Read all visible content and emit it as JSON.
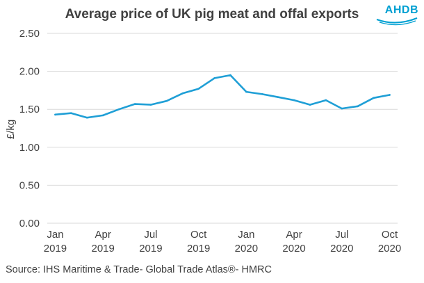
{
  "header": {
    "logo_text": "AHDB"
  },
  "footer": {
    "source": "Source: IHS Maritime & Trade- Global Trade Atlas®- HMRC"
  },
  "colors": {
    "line": "#1f9fd6",
    "logo": "#00a0d2",
    "grid": "#d9d9d9",
    "text": "#404040"
  },
  "chart_data": {
    "type": "line",
    "title": "Average price of UK pig meat and offal exports",
    "xlabel": "",
    "ylabel": "£/kg",
    "ylim": [
      0,
      2.5
    ],
    "yticks": [
      "0.00",
      "0.50",
      "1.00",
      "1.50",
      "2.00",
      "2.50"
    ],
    "grid": true,
    "x_tick_labels": [
      {
        "index": 0,
        "line1": "Jan",
        "line2": "2019"
      },
      {
        "index": 3,
        "line1": "Apr",
        "line2": "2019"
      },
      {
        "index": 6,
        "line1": "Jul",
        "line2": "2019"
      },
      {
        "index": 9,
        "line1": "Oct",
        "line2": "2019"
      },
      {
        "index": 12,
        "line1": "Jan",
        "line2": "2020"
      },
      {
        "index": 15,
        "line1": "Apr",
        "line2": "2020"
      },
      {
        "index": 18,
        "line1": "Jul",
        "line2": "2020"
      },
      {
        "index": 21,
        "line1": "Oct",
        "line2": "2020"
      }
    ],
    "series": [
      {
        "name": "Average price",
        "x": [
          "Jan 2019",
          "Feb 2019",
          "Mar 2019",
          "Apr 2019",
          "May 2019",
          "Jun 2019",
          "Jul 2019",
          "Aug 2019",
          "Sep 2019",
          "Oct 2019",
          "Nov 2019",
          "Dec 2019",
          "Jan 2020",
          "Feb 2020",
          "Mar 2020",
          "Apr 2020",
          "May 2020",
          "Jun 2020",
          "Jul 2020",
          "Aug 2020",
          "Sep 2020",
          "Oct 2020"
        ],
        "values": [
          1.43,
          1.45,
          1.39,
          1.42,
          1.5,
          1.57,
          1.56,
          1.61,
          1.71,
          1.77,
          1.91,
          1.95,
          1.73,
          1.7,
          1.66,
          1.62,
          1.56,
          1.62,
          1.51,
          1.54,
          1.65,
          1.69
        ]
      }
    ]
  }
}
